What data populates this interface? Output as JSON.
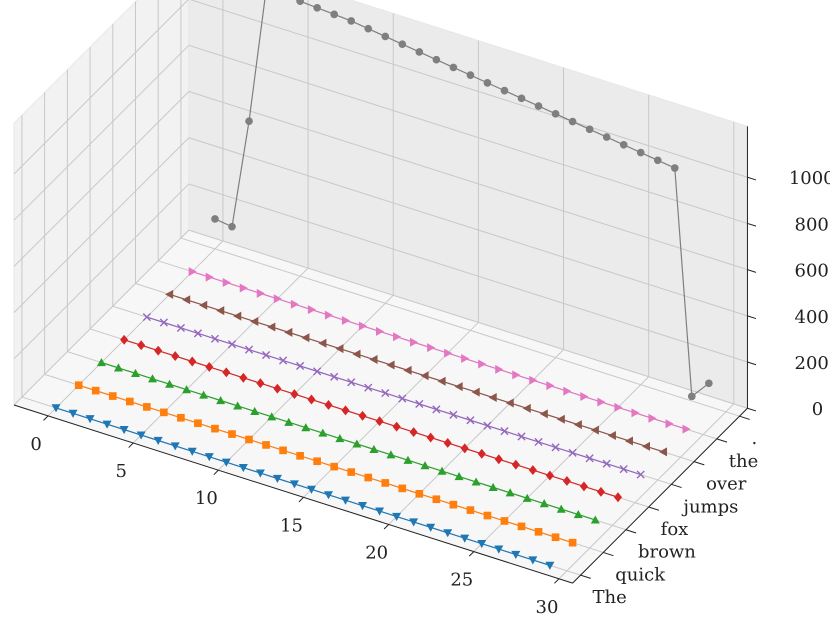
{
  "chart_data": {
    "type": "line",
    "projection": "3d",
    "title": "",
    "xlabel": "",
    "ylabel": "",
    "zlabel": "",
    "xlim": [
      -2,
      30
    ],
    "zlim": [
      0,
      12000
    ],
    "x_ticks": [
      "0",
      "5",
      "10",
      "15",
      "20",
      "25",
      "30"
    ],
    "y_ticks": [
      "The",
      "quick",
      "brown",
      "fox",
      "jumps",
      "over",
      "the",
      "."
    ],
    "z_ticks": [
      "0",
      "2000",
      "4000",
      "6000",
      "8000",
      "10000"
    ],
    "grid": true,
    "series": [
      {
        "y": 0,
        "color": "#1f77b4",
        "marker": "triangle-down",
        "x": [
          0,
          1,
          2,
          3,
          4,
          5,
          6,
          7,
          8,
          9,
          10,
          11,
          12,
          13,
          14,
          15,
          16,
          17,
          18,
          19,
          20,
          21,
          22,
          23,
          24,
          25,
          26,
          27,
          28,
          29
        ],
        "z": [
          0,
          0,
          0,
          0,
          0,
          0,
          0,
          0,
          0,
          0,
          0,
          0,
          0,
          0,
          0,
          0,
          0,
          0,
          0,
          0,
          0,
          0,
          0,
          0,
          0,
          0,
          0,
          0,
          0,
          0
        ]
      },
      {
        "y": 1,
        "color": "#ff7f0e",
        "marker": "square",
        "x": [
          0,
          1,
          2,
          3,
          4,
          5,
          6,
          7,
          8,
          9,
          10,
          11,
          12,
          13,
          14,
          15,
          16,
          17,
          18,
          19,
          20,
          21,
          22,
          23,
          24,
          25,
          26,
          27,
          28,
          29
        ],
        "z": [
          0,
          0,
          0,
          0,
          0,
          0,
          0,
          0,
          0,
          0,
          0,
          0,
          0,
          0,
          0,
          0,
          0,
          0,
          0,
          0,
          0,
          0,
          0,
          0,
          0,
          0,
          0,
          0,
          0,
          0
        ]
      },
      {
        "y": 2,
        "color": "#2ca02c",
        "marker": "triangle-up",
        "x": [
          0,
          1,
          2,
          3,
          4,
          5,
          6,
          7,
          8,
          9,
          10,
          11,
          12,
          13,
          14,
          15,
          16,
          17,
          18,
          19,
          20,
          21,
          22,
          23,
          24,
          25,
          26,
          27,
          28,
          29
        ],
        "z": [
          0,
          0,
          0,
          0,
          0,
          0,
          0,
          0,
          0,
          0,
          0,
          0,
          0,
          0,
          0,
          0,
          0,
          0,
          0,
          0,
          0,
          0,
          0,
          0,
          0,
          0,
          0,
          0,
          0,
          0
        ]
      },
      {
        "y": 3,
        "color": "#d62728",
        "marker": "diamond",
        "x": [
          0,
          1,
          2,
          3,
          4,
          5,
          6,
          7,
          8,
          9,
          10,
          11,
          12,
          13,
          14,
          15,
          16,
          17,
          18,
          19,
          20,
          21,
          22,
          23,
          24,
          25,
          26,
          27,
          28,
          29
        ],
        "z": [
          0,
          0,
          0,
          0,
          0,
          0,
          0,
          0,
          0,
          0,
          0,
          0,
          0,
          0,
          0,
          0,
          0,
          0,
          0,
          0,
          0,
          0,
          0,
          0,
          0,
          0,
          0,
          0,
          0,
          0
        ]
      },
      {
        "y": 4,
        "color": "#9467bd",
        "marker": "x",
        "x": [
          0,
          1,
          2,
          3,
          4,
          5,
          6,
          7,
          8,
          9,
          10,
          11,
          12,
          13,
          14,
          15,
          16,
          17,
          18,
          19,
          20,
          21,
          22,
          23,
          24,
          25,
          26,
          27,
          28,
          29
        ],
        "z": [
          0,
          0,
          0,
          0,
          0,
          0,
          0,
          0,
          0,
          0,
          0,
          0,
          0,
          0,
          0,
          0,
          0,
          0,
          0,
          0,
          0,
          0,
          0,
          0,
          0,
          0,
          0,
          0,
          0,
          0
        ]
      },
      {
        "y": 5,
        "color": "#8c564b",
        "marker": "triangle-left",
        "x": [
          0,
          1,
          2,
          3,
          4,
          5,
          6,
          7,
          8,
          9,
          10,
          11,
          12,
          13,
          14,
          15,
          16,
          17,
          18,
          19,
          20,
          21,
          22,
          23,
          24,
          25,
          26,
          27,
          28,
          29
        ],
        "z": [
          0,
          0,
          0,
          0,
          0,
          0,
          0,
          0,
          0,
          0,
          0,
          0,
          0,
          0,
          0,
          0,
          0,
          0,
          0,
          0,
          0,
          0,
          0,
          0,
          0,
          0,
          0,
          0,
          0,
          0
        ]
      },
      {
        "y": 6,
        "color": "#e377c2",
        "marker": "triangle-right",
        "x": [
          0,
          1,
          2,
          3,
          4,
          5,
          6,
          7,
          8,
          9,
          10,
          11,
          12,
          13,
          14,
          15,
          16,
          17,
          18,
          19,
          20,
          21,
          22,
          23,
          24,
          25,
          26,
          27,
          28,
          29
        ],
        "z": [
          0,
          0,
          0,
          0,
          0,
          0,
          0,
          0,
          0,
          0,
          0,
          0,
          0,
          0,
          0,
          0,
          0,
          0,
          0,
          0,
          0,
          0,
          0,
          0,
          0,
          0,
          0,
          0,
          0,
          0
        ]
      },
      {
        "y": 7,
        "color": "#7f7f7f",
        "marker": "circle",
        "x": [
          0,
          1,
          2,
          3,
          4,
          5,
          6,
          7,
          8,
          9,
          10,
          11,
          12,
          13,
          14,
          15,
          16,
          17,
          18,
          19,
          20,
          21,
          22,
          23,
          24,
          25,
          26,
          27,
          28,
          29
        ],
        "z": [
          1300,
          1200,
          6000,
          11900,
          11950,
          11900,
          11850,
          11800,
          11750,
          11650,
          11550,
          11450,
          11350,
          11250,
          11150,
          11050,
          10950,
          10850,
          10750,
          10650,
          10550,
          10450,
          10350,
          10250,
          10150,
          10050,
          9950,
          9850,
          200,
          1000
        ]
      }
    ]
  }
}
